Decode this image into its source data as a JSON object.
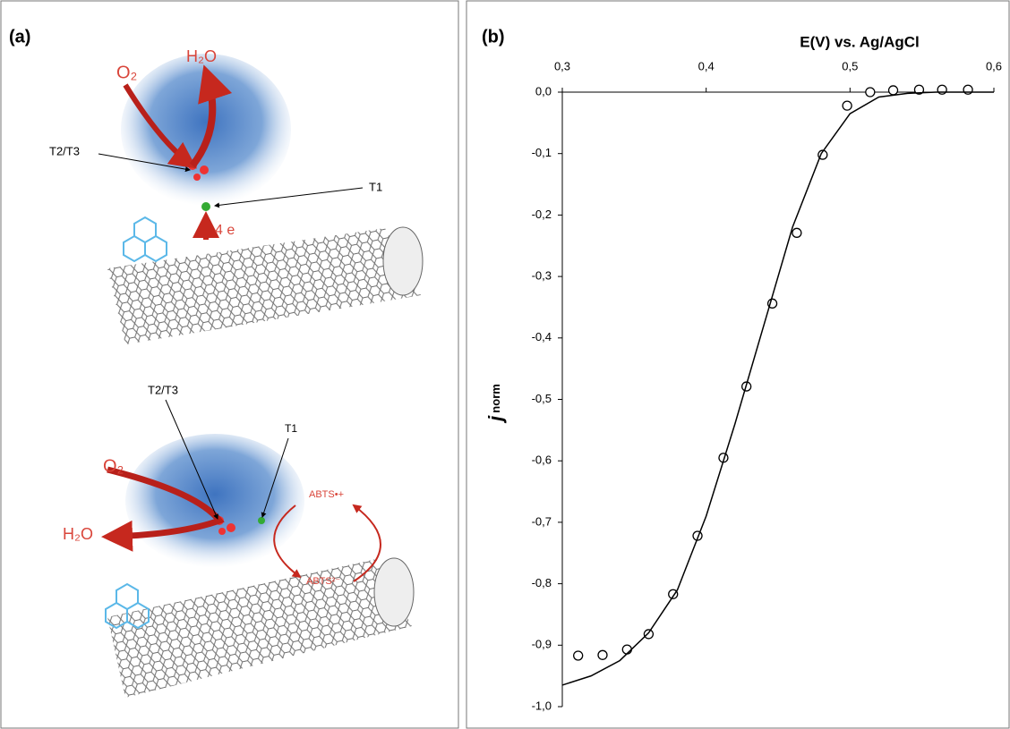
{
  "panel_a": {
    "label": "(a)",
    "top": {
      "o2": "O₂",
      "h2o": "H₂O",
      "t2t3": "T2/T3",
      "t1": "T1",
      "electrons": "4 e"
    },
    "bottom": {
      "t2t3": "T2/T3",
      "t1": "T1",
      "o2": "O₂",
      "h2o": "H₂O",
      "abts_ox": "ABTS•+",
      "abts_red": "ABTS²⁻"
    }
  },
  "chart_data": {
    "type": "scatter",
    "panel_label": "(b)",
    "x_label": "E(V) vs. Ag/AgCl",
    "y_label": "j",
    "y_label_sub": "norm",
    "xlim": [
      0.3,
      0.6
    ],
    "ylim": [
      -1.0,
      0.0
    ],
    "xticks": [
      {
        "value": 0.3,
        "label": "0,3"
      },
      {
        "value": 0.4,
        "label": "0,4"
      },
      {
        "value": 0.5,
        "label": "0,5"
      },
      {
        "value": 0.6,
        "label": "0,6"
      }
    ],
    "yticks": [
      {
        "value": 0.0,
        "label": "0,0"
      },
      {
        "value": -0.1,
        "label": "-0,1"
      },
      {
        "value": -0.2,
        "label": "-0,2"
      },
      {
        "value": -0.3,
        "label": "-0,3"
      },
      {
        "value": -0.4,
        "label": "-0,4"
      },
      {
        "value": -0.5,
        "label": "-0,5"
      },
      {
        "value": -0.6,
        "label": "-0,6"
      },
      {
        "value": -0.7,
        "label": "-0,7"
      },
      {
        "value": -0.8,
        "label": "-0,8"
      },
      {
        "value": -0.9,
        "label": "-0,9"
      },
      {
        "value": -1.0,
        "label": "-1,0"
      }
    ],
    "x_axis_position": "top",
    "series": [
      {
        "style": "markers",
        "color": "#000000",
        "x": [
          0.311,
          0.328,
          0.345,
          0.36,
          0.377,
          0.394,
          0.412,
          0.428,
          0.446,
          0.463,
          0.481,
          0.498,
          0.514,
          0.53,
          0.548,
          0.564,
          0.582
        ],
        "values": [
          -0.917,
          -0.916,
          -0.907,
          -0.882,
          -0.817,
          -0.722,
          -0.595,
          -0.479,
          -0.344,
          -0.229,
          -0.102,
          -0.022,
          0.0,
          0.003,
          0.004,
          0.004,
          0.004
        ]
      },
      {
        "style": "line",
        "color": "#000000",
        "x": [
          0.3,
          0.32,
          0.34,
          0.36,
          0.38,
          0.4,
          0.42,
          0.44,
          0.46,
          0.48,
          0.5,
          0.52,
          0.54,
          0.56,
          0.58,
          0.6
        ],
        "values": [
          -0.965,
          -0.95,
          -0.925,
          -0.88,
          -0.81,
          -0.69,
          -0.54,
          -0.38,
          -0.22,
          -0.1,
          -0.035,
          -0.008,
          -0.002,
          0.0,
          0.0,
          0.0
        ]
      }
    ]
  }
}
